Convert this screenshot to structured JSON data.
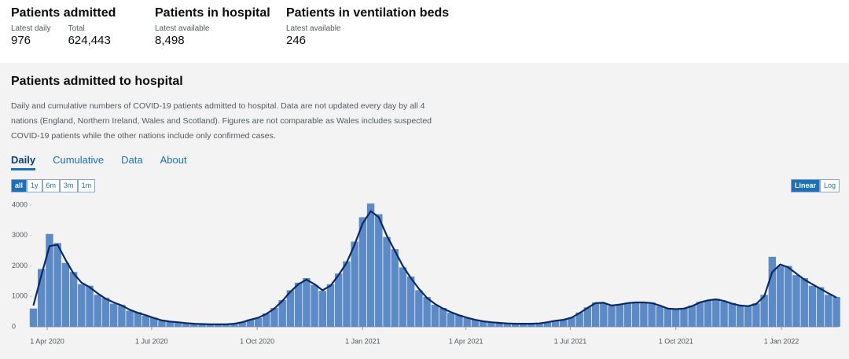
{
  "headline": [
    {
      "title": "Patients admitted",
      "metrics": [
        {
          "label": "Latest daily",
          "value": "976"
        },
        {
          "label": "Total",
          "value": "624,443"
        }
      ]
    },
    {
      "title": "Patients in hospital",
      "metrics": [
        {
          "label": "Latest available",
          "value": "8,498"
        }
      ]
    },
    {
      "title": "Patients in ventilation beds",
      "metrics": [
        {
          "label": "Latest available",
          "value": "246"
        }
      ]
    }
  ],
  "panel": {
    "title": "Patients admitted to hospital",
    "description": "Daily and cumulative numbers of COVID-19 patients admitted to hospital. Data are not updated every day by all 4 nations (England, Northern Ireland, Wales and Scotland). Figures are not comparable as Wales includes suspected COVID-19 patients while the other nations include only confirmed cases.",
    "tabs": [
      "Daily",
      "Cumulative",
      "Data",
      "About"
    ],
    "active_tab": 0,
    "range_buttons": [
      "all",
      "1y",
      "6m",
      "3m",
      "1m"
    ],
    "active_range": 0,
    "scale_buttons": [
      "Linear",
      "Log"
    ],
    "active_scale": 0
  },
  "chart_data": {
    "type": "bar",
    "x": [
      -12,
      -5,
      2,
      9,
      16,
      23,
      30,
      37,
      44,
      51,
      58,
      65,
      72,
      79,
      86,
      93,
      100,
      107,
      114,
      121,
      128,
      135,
      142,
      149,
      156,
      163,
      170,
      177,
      184,
      191,
      198,
      205,
      212,
      219,
      226,
      233,
      240,
      247,
      254,
      261,
      268,
      275,
      282,
      289,
      296,
      303,
      310,
      317,
      324,
      331,
      338,
      345,
      352,
      359,
      366,
      373,
      380,
      387,
      394,
      401,
      408,
      415,
      422,
      429,
      436,
      443,
      450,
      457,
      464,
      471,
      478,
      485,
      492,
      499,
      506,
      513,
      520,
      527,
      534,
      541,
      548,
      555,
      562,
      569,
      576,
      583,
      590,
      597,
      604,
      611,
      618,
      625,
      632,
      639,
      646,
      653,
      660,
      667,
      674,
      681,
      688
    ],
    "series": [
      {
        "type": "bar",
        "color": "#5b8ac6",
        "values": [
          600,
          1900,
          3050,
          2750,
          2100,
          1800,
          1400,
          1350,
          1050,
          950,
          760,
          720,
          530,
          480,
          360,
          300,
          200,
          180,
          140,
          125,
          95,
          92,
          78,
          85,
          76,
          105,
          160,
          240,
          290,
          440,
          620,
          880,
          1200,
          1450,
          1600,
          1380,
          1180,
          1400,
          1750,
          2150,
          2800,
          3600,
          4050,
          3700,
          2950,
          2550,
          1950,
          1650,
          1200,
          980,
          720,
          620,
          460,
          390,
          290,
          240,
          175,
          155,
          125,
          115,
          95,
          105,
          98,
          115,
          160,
          210,
          225,
          310,
          470,
          640,
          800,
          770,
          690,
          750,
          790,
          820,
          790,
          800,
          680,
          610,
          570,
          620,
          700,
          820,
          860,
          920,
          830,
          780,
          690,
          700,
          770,
          1050,
          2300,
          2000,
          2000,
          1700,
          1600,
          1350,
          1300,
          1050,
          980
        ]
      },
      {
        "type": "line",
        "color": "#0b2a63",
        "values": [
          700,
          1700,
          2650,
          2700,
          2200,
          1750,
          1450,
          1300,
          1100,
          920,
          800,
          700,
          560,
          460,
          380,
          290,
          210,
          170,
          150,
          120,
          100,
          90,
          80,
          80,
          80,
          100,
          150,
          230,
          300,
          420,
          600,
          850,
          1150,
          1400,
          1550,
          1400,
          1200,
          1350,
          1700,
          2100,
          2700,
          3400,
          3800,
          3600,
          3000,
          2500,
          2000,
          1600,
          1250,
          950,
          750,
          600,
          480,
          380,
          300,
          230,
          180,
          150,
          130,
          110,
          100,
          100,
          100,
          110,
          150,
          200,
          230,
          300,
          450,
          620,
          780,
          790,
          700,
          730,
          780,
          800,
          800,
          780,
          700,
          600,
          580,
          600,
          680,
          800,
          870,
          900,
          850,
          760,
          700,
          680,
          750,
          1000,
          1800,
          2050,
          1950,
          1750,
          1550,
          1400,
          1250,
          1100,
          960
        ]
      }
    ],
    "xlim": [
      -14,
      690
    ],
    "xticks": [
      {
        "value": 0,
        "label": "1 Apr 2020"
      },
      {
        "value": 91,
        "label": "1 Jul 2020"
      },
      {
        "value": 183,
        "label": "1 Oct 2020"
      },
      {
        "value": 275,
        "label": "1 Jan 2021"
      },
      {
        "value": 365,
        "label": "1 Apr 2021"
      },
      {
        "value": 456,
        "label": "1 Jul 2021"
      },
      {
        "value": 548,
        "label": "1 Oct 2021"
      },
      {
        "value": 640,
        "label": "1 Jan 2022"
      }
    ],
    "ylim": [
      0,
      4000
    ],
    "yticks": [
      0,
      1000,
      2000,
      3000,
      4000
    ],
    "log_scale": false
  }
}
